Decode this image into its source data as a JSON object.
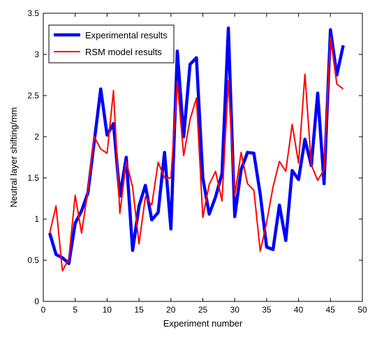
{
  "chart_data": {
    "type": "line",
    "title": "",
    "xlabel": "Experiment number",
    "ylabel": "Neutral layer shifting/mm",
    "xlim": [
      0,
      50
    ],
    "ylim": [
      0,
      3.5
    ],
    "xticks": [
      0,
      5,
      10,
      15,
      20,
      25,
      30,
      35,
      40,
      45,
      50
    ],
    "yticks": [
      0,
      0.5,
      1,
      1.5,
      2,
      2.5,
      3,
      3.5
    ],
    "xtick_labels": [
      "0",
      "5",
      "10",
      "15",
      "20",
      "25",
      "30",
      "35",
      "40",
      "45",
      "50"
    ],
    "ytick_labels": [
      "0",
      "0.5",
      "1",
      "1.5",
      "2",
      "2.5",
      "3",
      "3.5"
    ],
    "grid": false,
    "legend_position": "top-left",
    "x": [
      1,
      2,
      3,
      4,
      5,
      6,
      7,
      8,
      9,
      10,
      11,
      12,
      13,
      14,
      15,
      16,
      17,
      18,
      19,
      20,
      21,
      22,
      23,
      24,
      25,
      26,
      27,
      28,
      29,
      30,
      31,
      32,
      33,
      34,
      35,
      36,
      37,
      38,
      39,
      40,
      41,
      42,
      43,
      44,
      45,
      46,
      47
    ],
    "series": [
      {
        "name": "Experimental results",
        "color": "#0000ff",
        "values": [
          0.83,
          0.57,
          0.53,
          0.46,
          0.95,
          1.1,
          1.32,
          1.95,
          2.58,
          2.02,
          2.16,
          1.28,
          1.75,
          0.62,
          1.16,
          1.41,
          0.99,
          1.08,
          1.81,
          0.88,
          3.04,
          2.0,
          2.88,
          2.96,
          1.5,
          1.06,
          1.27,
          1.55,
          3.32,
          1.03,
          1.6,
          1.81,
          1.8,
          1.3,
          0.66,
          0.63,
          1.17,
          0.74,
          1.59,
          1.48,
          1.97,
          1.65,
          2.53,
          1.43,
          3.3,
          2.75,
          3.11
        ]
      },
      {
        "name": "RSM model results",
        "color": "#ff0000",
        "values": [
          0.83,
          1.16,
          0.37,
          0.52,
          1.29,
          0.83,
          1.35,
          2.0,
          1.85,
          1.8,
          2.56,
          1.07,
          1.7,
          1.39,
          0.7,
          1.27,
          1.17,
          1.69,
          1.5,
          1.5,
          2.67,
          1.77,
          2.21,
          2.47,
          1.02,
          1.42,
          1.58,
          1.22,
          2.68,
          1.28,
          1.81,
          1.43,
          1.35,
          0.61,
          0.96,
          1.39,
          1.7,
          1.58,
          2.15,
          1.68,
          2.76,
          1.66,
          1.47,
          1.6,
          3.21,
          2.64,
          2.58
        ]
      }
    ]
  }
}
